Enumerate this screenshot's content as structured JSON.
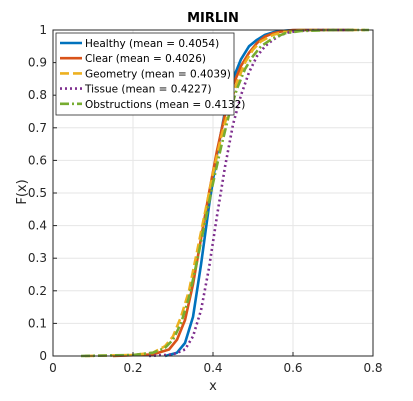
{
  "chart_data": {
    "type": "line",
    "title": "MIRLIN",
    "xlabel": "x",
    "ylabel": "F(x)",
    "xlim": [
      0,
      0.8
    ],
    "ylim": [
      0,
      1
    ],
    "xticks": [
      0,
      0.2,
      0.4,
      0.6,
      0.8
    ],
    "xtick_labels": [
      "0",
      "0.2",
      "0.4",
      "0.6",
      "0.8"
    ],
    "yticks": [
      0,
      0.1,
      0.2,
      0.3,
      0.4,
      0.5,
      0.6,
      0.7,
      0.8,
      0.9,
      1
    ],
    "ytick_labels": [
      "0",
      "0.1",
      "0.2",
      "0.3",
      "0.4",
      "0.5",
      "0.6",
      "0.7",
      "0.8",
      "0.9",
      "1"
    ],
    "grid": true,
    "legend_position": "top-left",
    "series": [
      {
        "name": "Healthy (mean = 0.4054)",
        "color": "#0072BD",
        "style": "solid",
        "x": [
          0.28,
          0.31,
          0.33,
          0.35,
          0.37,
          0.39,
          0.41,
          0.43,
          0.45,
          0.47,
          0.49,
          0.51,
          0.53,
          0.55,
          0.57,
          0.59,
          0.62,
          0.66,
          0.75
        ],
        "y": [
          0.0,
          0.01,
          0.04,
          0.12,
          0.28,
          0.46,
          0.62,
          0.75,
          0.85,
          0.91,
          0.95,
          0.97,
          0.985,
          0.993,
          0.997,
          0.999,
          1.0,
          1.0,
          1.0
        ]
      },
      {
        "name": "Clear (mean = 0.4026)",
        "color": "#D95319",
        "style": "solid",
        "x": [
          0.15,
          0.25,
          0.29,
          0.31,
          0.33,
          0.35,
          0.37,
          0.39,
          0.41,
          0.43,
          0.45,
          0.47,
          0.49,
          0.51,
          0.53,
          0.55,
          0.57,
          0.6,
          0.65,
          0.75
        ],
        "y": [
          0.0,
          0.005,
          0.02,
          0.05,
          0.11,
          0.22,
          0.36,
          0.5,
          0.63,
          0.74,
          0.83,
          0.89,
          0.93,
          0.96,
          0.98,
          0.99,
          0.995,
          1.0,
          1.0,
          1.0
        ]
      },
      {
        "name": "Geometry (mean = 0.4039)",
        "color": "#EDB120",
        "style": "dashed",
        "x": [
          0.08,
          0.2,
          0.25,
          0.28,
          0.3,
          0.32,
          0.34,
          0.36,
          0.38,
          0.4,
          0.42,
          0.44,
          0.46,
          0.48,
          0.5,
          0.52,
          0.55,
          0.58,
          0.62,
          0.7,
          0.78
        ],
        "y": [
          0.0,
          0.003,
          0.01,
          0.03,
          0.06,
          0.12,
          0.2,
          0.32,
          0.44,
          0.56,
          0.67,
          0.76,
          0.84,
          0.9,
          0.94,
          0.965,
          0.985,
          0.995,
          1.0,
          1.0,
          1.0
        ]
      },
      {
        "name": "Tissue (mean = 0.4227)",
        "color": "#7E2F8E",
        "style": "dotted",
        "x": [
          0.24,
          0.3,
          0.33,
          0.35,
          0.37,
          0.39,
          0.41,
          0.43,
          0.45,
          0.47,
          0.49,
          0.51,
          0.53,
          0.55,
          0.57,
          0.59,
          0.62,
          0.66,
          0.75
        ],
        "y": [
          0.0,
          0.005,
          0.02,
          0.06,
          0.14,
          0.27,
          0.43,
          0.58,
          0.71,
          0.8,
          0.87,
          0.92,
          0.95,
          0.97,
          0.985,
          0.993,
          0.998,
          1.0,
          1.0
        ]
      },
      {
        "name": "Obstructions (mean = 0.4132)",
        "color": "#77AC30",
        "style": "dashdot",
        "x": [
          0.07,
          0.2,
          0.25,
          0.28,
          0.3,
          0.32,
          0.34,
          0.36,
          0.38,
          0.4,
          0.42,
          0.44,
          0.46,
          0.48,
          0.5,
          0.52,
          0.55,
          0.58,
          0.62,
          0.7,
          0.79
        ],
        "y": [
          0.0,
          0.003,
          0.01,
          0.025,
          0.05,
          0.1,
          0.18,
          0.29,
          0.41,
          0.53,
          0.64,
          0.74,
          0.82,
          0.88,
          0.92,
          0.95,
          0.975,
          0.99,
          0.997,
          1.0,
          1.0
        ]
      }
    ]
  }
}
